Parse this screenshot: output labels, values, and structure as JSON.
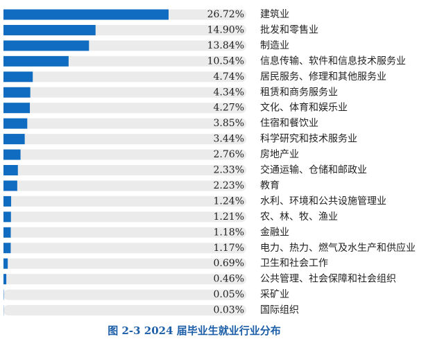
{
  "chart_data": {
    "type": "barh",
    "title": "图 2-3   2024 届毕业生就业行业分布",
    "categories": [
      "建筑业",
      "批发和零售业",
      "制造业",
      "信息传输、软件和信息技术服务业",
      "居民服务、修理和其他服务业",
      "租赁和商务服务业",
      "文化、体育和娱乐业",
      "住宿和餐饮业",
      "科学研究和技术服务业",
      "房地产业",
      "交通运输、仓储和邮政业",
      "教育",
      "水利、环境和公共设施管理业",
      "农、林、牧、渔业",
      "金融业",
      "电力、热力、燃气及水生产和供应业",
      "卫生和社会工作",
      "公共管理、社会保障和社会组织",
      "采矿业",
      "国际组织"
    ],
    "values": [
      26.72,
      14.9,
      13.84,
      10.54,
      4.74,
      4.34,
      4.27,
      3.85,
      3.44,
      2.76,
      2.33,
      2.23,
      1.24,
      1.21,
      1.18,
      1.17,
      0.69,
      0.46,
      0.05,
      0.03
    ],
    "value_labels": [
      "26.72%",
      "14.90%",
      "13.84%",
      "10.54%",
      "4.74%",
      "4.34%",
      "4.27%",
      "3.85%",
      "3.44%",
      "2.76%",
      "2.33%",
      "2.23%",
      "1.24%",
      "1.21%",
      "1.18%",
      "1.17%",
      "0.69%",
      "0.46%",
      "0.05%",
      "0.03%"
    ],
    "color": "#0f6cc0",
    "track_color": "#ebebeb"
  }
}
